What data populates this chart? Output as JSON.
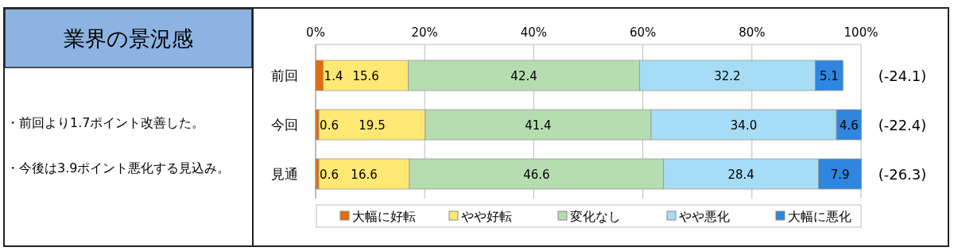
{
  "chart_data": [
    {
      "type": "other",
      "title": "業界の景況感",
      "annotations": [
        "・前回より1.7ポイント改善した。",
        "・今後は3.9ポイント悪化する見込み。"
      ]
    },
    {
      "type": "bar",
      "orientation": "horizontal",
      "stacked": true,
      "categories": [
        "前回",
        "今回",
        "見通"
      ],
      "series": [
        {
          "name": "大幅に好転",
          "color": "#e46c0a",
          "values": [
            1.4,
            0.6,
            0.6
          ],
          "value_labels": [
            "1.4",
            "0.6",
            "0.6"
          ]
        },
        {
          "name": "やや好転",
          "color": "#ffe873",
          "values": [
            15.6,
            19.5,
            16.6
          ],
          "value_labels": [
            "15.6",
            "19.5",
            "16.6"
          ]
        },
        {
          "name": "変化なし",
          "color": "#b5ddb0",
          "values": [
            42.4,
            41.4,
            46.6
          ],
          "value_labels": [
            "42.4",
            "41.4",
            "46.6"
          ]
        },
        {
          "name": "やや悪化",
          "color": "#a6dcf5",
          "values": [
            32.2,
            34.0,
            28.4
          ],
          "value_labels": [
            "32.2",
            "34.0",
            "28.4"
          ]
        },
        {
          "name": "大幅に悪化",
          "color": "#2e86de",
          "values": [
            5.1,
            4.6,
            7.9
          ],
          "value_labels": [
            "5.1",
            "4.6",
            "7.9"
          ]
        }
      ],
      "xlim": [
        0,
        100
      ],
      "xticks": [
        {
          "value": 0,
          "label": "0%"
        },
        {
          "value": 20,
          "label": "20%"
        },
        {
          "value": 40,
          "label": "40%"
        },
        {
          "value": 60,
          "label": "60%"
        },
        {
          "value": 80,
          "label": "80%"
        },
        {
          "value": 100,
          "label": "100%"
        }
      ],
      "grid": "x",
      "legend": "bottom",
      "annotations": [
        "(-24.1)",
        "(-22.4)",
        "(-26.3)"
      ]
    }
  ]
}
